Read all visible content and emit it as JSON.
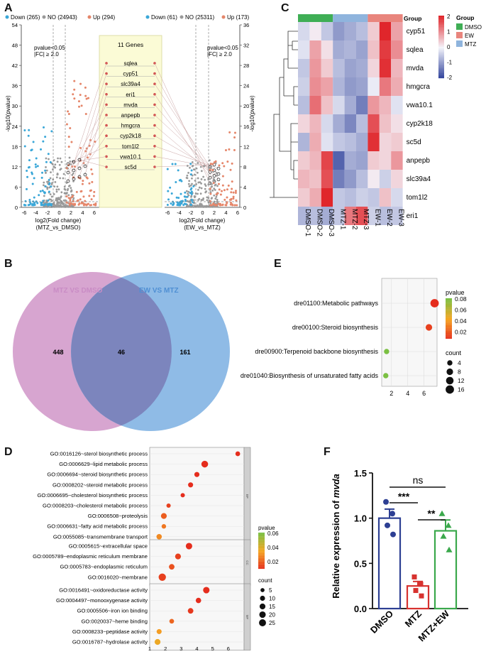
{
  "panels": {
    "A": "A",
    "B": "B",
    "C": "C",
    "D": "D",
    "E": "E",
    "F": "F"
  },
  "panelA": {
    "left_legend": {
      "down": "Down (265)",
      "no": "NO (24943)",
      "up": "Up (294)"
    },
    "right_legend": {
      "down": "Down (61)",
      "no": "NO (25311)",
      "up": "Up (173)"
    },
    "threshold_lines": [
      "pvalue<0.05",
      "|FC| ≥ 2.0"
    ],
    "genes_title": "11 Genes",
    "genes": [
      "sqlea",
      "cyp51",
      "slc39a4",
      "eri1",
      "mvda",
      "anpepb",
      "hmgcra",
      "cyp2k18",
      "tom1l2",
      "vwa10.1",
      "sc5d"
    ],
    "left_y_ticks": [
      "54",
      "48",
      "42",
      "36",
      "30",
      "24",
      "18",
      "12",
      "6",
      "0"
    ],
    "right_y_ticks": [
      "36",
      "32",
      "28",
      "24",
      "20",
      "16",
      "12",
      "8",
      "4",
      "0"
    ],
    "x_ticks": [
      "-6",
      "-4",
      "-2",
      "0",
      "2",
      "4",
      "6"
    ],
    "left_xlabel": [
      "log2(Fold change)",
      "(MTZ_vs_DMSO)"
    ],
    "right_xlabel": [
      "log2(Fold change)",
      "(EW_vs_MTZ)"
    ],
    "ylabel": "-log10(pvalue)"
  },
  "panelB": {
    "left_label": "MTZ VS DMSO",
    "right_label": "EW VS MTZ",
    "left_only": "448",
    "overlap": "46",
    "right_only": "161",
    "colors": {
      "left": "#d7a5d0",
      "right": "#8fbbe6",
      "overlap": "#7c85bd"
    }
  },
  "panelC": {
    "chart_data": {
      "type": "heatmap",
      "rows": [
        "cyp51",
        "sqlea",
        "mvda",
        "hmgcra",
        "vwa10.1",
        "cyp2k18",
        "sc5d",
        "anpepb",
        "slc39a4",
        "tom1l2",
        "eri1"
      ],
      "columns": [
        "DMSO-1",
        "DMSO-2",
        "DMSO-3",
        "MTZ-1",
        "MTZ-2",
        "MTZ-3",
        "EW-1",
        "EW-2",
        "EW-3"
      ],
      "values": [
        [
          -0.3,
          0.1,
          -0.5,
          -1.0,
          -0.8,
          -0.6,
          0.4,
          2.0,
          0.8
        ],
        [
          -0.2,
          0.8,
          0.2,
          -0.8,
          -0.7,
          -0.9,
          0.5,
          1.8,
          1.0
        ],
        [
          -0.5,
          0.9,
          0.4,
          -0.6,
          -0.9,
          -0.8,
          0.3,
          1.9,
          0.6
        ],
        [
          -0.4,
          1.0,
          0.8,
          -0.7,
          -1.0,
          -0.9,
          -0.1,
          1.2,
          0.7
        ],
        [
          -0.6,
          1.3,
          0.5,
          -0.3,
          -0.8,
          -1.3,
          0.9,
          0.6,
          -0.2
        ],
        [
          0.3,
          0.6,
          -0.3,
          -0.8,
          -1.2,
          -0.6,
          1.6,
          0.5,
          0.2
        ],
        [
          -0.7,
          0.7,
          -0.2,
          -0.5,
          -0.6,
          -0.8,
          1.9,
          0.3,
          0.4
        ],
        [
          0.4,
          0.6,
          1.7,
          -1.6,
          -0.8,
          -0.9,
          0.4,
          0.3,
          0.9
        ],
        [
          0.6,
          0.5,
          1.6,
          -1.3,
          -1.0,
          -0.6,
          0.1,
          -0.4,
          0.3
        ],
        [
          0.4,
          0.7,
          2.0,
          -0.5,
          -0.6,
          -0.4,
          -0.5,
          0.5,
          -0.3
        ],
        [
          -0.7,
          -0.6,
          -0.8,
          -0.5,
          1.2,
          1.6,
          -0.4,
          -0.6,
          -0.5
        ]
      ],
      "groups": [
        {
          "name": "DMSO",
          "color": "#3fae55",
          "span": 3
        },
        {
          "name": "MTZ",
          "color": "#8fb4dd",
          "span": 3
        },
        {
          "name": "EW",
          "color": "#e9857d",
          "span": 3
        }
      ],
      "group_header": "Group",
      "scale_ticks": [
        "2",
        "1",
        "0",
        "-1",
        "-2"
      ],
      "legend_title": "Group",
      "legend_items": [
        {
          "name": "DMSO",
          "color": "#3fae55"
        },
        {
          "name": "EW",
          "color": "#e9857d"
        },
        {
          "name": "MTZ",
          "color": "#8fb4dd"
        }
      ]
    }
  },
  "panelE": {
    "chart_data": {
      "type": "scatter",
      "terms": [
        "dre01100:Metabolic pathways",
        "dre00100:Steroid biosynthesis",
        "dre00900:Terpenoid backbone biosynthesis",
        "dre01040:Biosynthesis of unsaturated fatty acids"
      ],
      "x": [
        7.3,
        6.6,
        1.4,
        1.3
      ],
      "count": [
        16,
        8,
        4,
        4
      ],
      "pvalue": [
        0.015,
        0.02,
        0.08,
        0.08
      ],
      "x_ticks": [
        "2",
        "4",
        "6"
      ],
      "xlim": [
        0.8,
        7.6
      ],
      "legend_pvalue_title": "pvalue",
      "legend_pvalue_ticks": [
        "0.08",
        "0.06",
        "0.04",
        "0.02"
      ],
      "legend_count_title": "count",
      "legend_count_items": [
        "4",
        "8",
        "12",
        "16"
      ]
    }
  },
  "panelD": {
    "chart_data": {
      "type": "scatter",
      "sections": [
        {
          "tag": "BP",
          "terms": [
            {
              "label": "GO:0016126~sterol biosynthetic process",
              "x": 6.6,
              "count": 8,
              "p": 0.01
            },
            {
              "label": "GO:0006629~lipid metabolic process",
              "x": 4.5,
              "count": 22,
              "p": 0.01
            },
            {
              "label": "GO:0006694~steroid biosynthetic process",
              "x": 4.0,
              "count": 10,
              "p": 0.01
            },
            {
              "label": "GO:0008202~steroid metabolic process",
              "x": 3.6,
              "count": 10,
              "p": 0.012
            },
            {
              "label": "GO:0006695~cholesterol biosynthetic process",
              "x": 3.1,
              "count": 6,
              "p": 0.015
            },
            {
              "label": "GO:0008203~cholesterol metabolic process",
              "x": 2.2,
              "count": 6,
              "p": 0.02
            },
            {
              "label": "GO:0006508~proteolysis",
              "x": 1.9,
              "count": 15,
              "p": 0.028
            },
            {
              "label": "GO:0006631~fatty acid metabolic process",
              "x": 1.9,
              "count": 7,
              "p": 0.035
            },
            {
              "label": "GO:0055085~transmembrane transport",
              "x": 1.6,
              "count": 12,
              "p": 0.04
            }
          ]
        },
        {
          "tag": "CC",
          "terms": [
            {
              "label": "GO:0005615~extracellular space",
              "x": 3.5,
              "count": 20,
              "p": 0.015
            },
            {
              "label": "GO:0005789~endoplasmic reticulum membrane",
              "x": 2.8,
              "count": 15,
              "p": 0.02
            },
            {
              "label": "GO:0005783~endoplasmic reticulum",
              "x": 2.4,
              "count": 13,
              "p": 0.025
            },
            {
              "label": "GO:0016020~membrane",
              "x": 1.8,
              "count": 28,
              "p": 0.02
            }
          ]
        },
        {
          "tag": "MF",
          "terms": [
            {
              "label": "GO:0016491~oxidoreductase activity",
              "x": 4.6,
              "count": 20,
              "p": 0.015
            },
            {
              "label": "GO:0004497~monooxygenase activity",
              "x": 4.1,
              "count": 12,
              "p": 0.015
            },
            {
              "label": "GO:0005506~iron ion binding",
              "x": 3.6,
              "count": 13,
              "p": 0.018
            },
            {
              "label": "GO:0020037~heme binding",
              "x": 2.4,
              "count": 8,
              "p": 0.03
            },
            {
              "label": "GO:0008233~peptidase activity",
              "x": 1.6,
              "count": 10,
              "p": 0.045
            },
            {
              "label": "GO:0016787~hydrolase activity",
              "x": 1.5,
              "count": 15,
              "p": 0.05
            }
          ]
        }
      ],
      "x_ticks": [
        "1",
        "2",
        "3",
        "4",
        "5",
        "6"
      ],
      "xlim": [
        1,
        7
      ],
      "legend_pvalue_title": "pvalue",
      "legend_pvalue_ticks": [
        "0.06",
        "0.04",
        "0.02"
      ],
      "legend_count_title": "count",
      "legend_count_items": [
        "5",
        "10",
        "15",
        "20",
        "25"
      ]
    }
  },
  "panelF": {
    "chart_data": {
      "type": "bar",
      "categories": [
        "DMSO",
        "MTZ",
        "MTZ+EW"
      ],
      "values": [
        1.0,
        0.25,
        0.86
      ],
      "errors": [
        0.1,
        0.05,
        0.12
      ],
      "points": [
        [
          1.18,
          1.05,
          0.92,
          0.82
        ],
        [
          0.35,
          0.27,
          0.2,
          0.14
        ],
        [
          1.05,
          0.92,
          0.8,
          0.65
        ]
      ],
      "colors": [
        "#2d3f93",
        "#d7322f",
        "#3aa84b"
      ],
      "ylabel_prefix": "Relative expression of ",
      "ylabel_gene": "mvda",
      "y_ticks": [
        "0.0",
        "0.5",
        "1.0",
        "1.5"
      ],
      "ylim": [
        0,
        1.5
      ],
      "significance": [
        {
          "label": "***"
        },
        {
          "label": "**"
        },
        {
          "label": "ns"
        }
      ]
    }
  }
}
